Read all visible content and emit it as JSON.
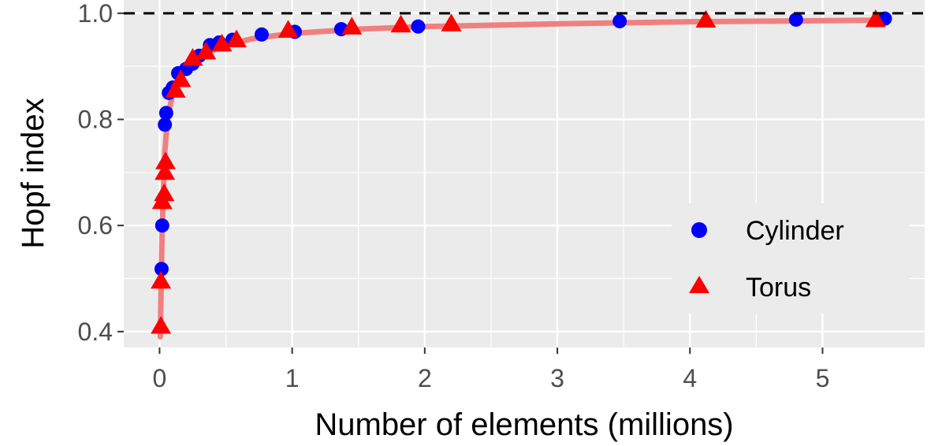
{
  "chart_data": {
    "type": "scatter",
    "title": "",
    "xlabel": "Number of elements (millions)",
    "ylabel": "Hopf index",
    "xlim": [
      -0.27,
      5.77
    ],
    "ylim": [
      0.37,
      1.025
    ],
    "x_ticks": [
      0,
      1,
      2,
      3,
      4,
      5
    ],
    "x_tick_labels": [
      "0",
      "1",
      "2",
      "3",
      "4",
      "5"
    ],
    "y_ticks": [
      0.4,
      0.6,
      0.8,
      1.0
    ],
    "y_tick_labels": [
      "0.4",
      "0.6",
      "0.8",
      "1.0"
    ],
    "grid": true,
    "legend_position": "right",
    "reference_line": {
      "y": 1.0,
      "style": "dashed",
      "color": "#000000"
    },
    "series": [
      {
        "name": "Cylinder",
        "marker": "circle",
        "color": "#0000ff",
        "points": [
          [
            0.015,
            0.518
          ],
          [
            0.02,
            0.6
          ],
          [
            0.04,
            0.79
          ],
          [
            0.05,
            0.812
          ],
          [
            0.07,
            0.85
          ],
          [
            0.1,
            0.86
          ],
          [
            0.14,
            0.887
          ],
          [
            0.2,
            0.895
          ],
          [
            0.25,
            0.905
          ],
          [
            0.3,
            0.92
          ],
          [
            0.38,
            0.94
          ],
          [
            0.45,
            0.945
          ],
          [
            0.55,
            0.95
          ],
          [
            0.77,
            0.96
          ],
          [
            1.02,
            0.965
          ],
          [
            1.37,
            0.97
          ],
          [
            1.95,
            0.975
          ],
          [
            3.47,
            0.985
          ],
          [
            4.8,
            0.988
          ],
          [
            5.47,
            0.99
          ]
        ]
      },
      {
        "name": "Torus",
        "marker": "triangle",
        "color": "#ff0000",
        "points": [
          [
            0.01,
            0.41
          ],
          [
            0.01,
            0.495
          ],
          [
            0.02,
            0.645
          ],
          [
            0.035,
            0.66
          ],
          [
            0.04,
            0.7
          ],
          [
            0.045,
            0.72
          ],
          [
            0.12,
            0.855
          ],
          [
            0.16,
            0.875
          ],
          [
            0.25,
            0.915
          ],
          [
            0.35,
            0.927
          ],
          [
            0.47,
            0.942
          ],
          [
            0.58,
            0.95
          ],
          [
            0.97,
            0.968
          ],
          [
            1.45,
            0.974
          ],
          [
            1.82,
            0.978
          ],
          [
            2.2,
            0.98
          ],
          [
            4.12,
            0.987
          ],
          [
            5.4,
            0.988
          ]
        ]
      }
    ],
    "fit_line": {
      "color": "#f08080",
      "points": [
        [
          0.005,
          0.39
        ],
        [
          0.02,
          0.6
        ],
        [
          0.04,
          0.74
        ],
        [
          0.06,
          0.8
        ],
        [
          0.1,
          0.85
        ],
        [
          0.15,
          0.875
        ],
        [
          0.2,
          0.895
        ],
        [
          0.3,
          0.915
        ],
        [
          0.4,
          0.93
        ],
        [
          0.5,
          0.94
        ],
        [
          0.7,
          0.952
        ],
        [
          1.0,
          0.962
        ],
        [
          1.5,
          0.97
        ],
        [
          2.0,
          0.975
        ],
        [
          3.0,
          0.98
        ],
        [
          4.0,
          0.984
        ],
        [
          5.0,
          0.986
        ],
        [
          5.47,
          0.987
        ]
      ]
    }
  }
}
